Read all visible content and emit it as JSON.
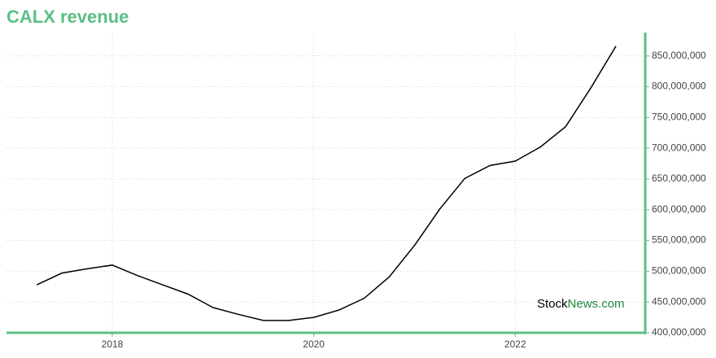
{
  "chart_data": {
    "type": "line",
    "title": "CALX revenue",
    "watermark": [
      "Stock",
      "News.com"
    ],
    "x": [
      2017.25,
      2017.5,
      2017.75,
      2018.0,
      2018.25,
      2018.5,
      2018.75,
      2019.0,
      2019.25,
      2019.5,
      2019.75,
      2020.0,
      2020.25,
      2020.5,
      2020.75,
      2021.0,
      2021.25,
      2021.5,
      2021.75,
      2022.0,
      2022.25,
      2022.5,
      2022.75,
      2023.0
    ],
    "series": [
      {
        "color": "#000000",
        "values": [
          478000000,
          497000000,
          504000000,
          510000000,
          493000000,
          478000000,
          463000000,
          441000000,
          430000000,
          420000000,
          420000000,
          425000000,
          437000000,
          456000000,
          491000000,
          542000000,
          601000000,
          651000000,
          672000000,
          679000000,
          702000000,
          735000000,
          798000000,
          866000000
        ]
      }
    ],
    "xlim": [
      2016.95,
      2023.29
    ],
    "xticks": [
      2018,
      2020,
      2022
    ],
    "ylim": [
      400000000,
      888000000
    ],
    "yticks": [
      {
        "value": 400000000,
        "label": "400,000,000"
      },
      {
        "value": 450000000,
        "label": "450,000,000"
      },
      {
        "value": 500000000,
        "label": "500,000,000"
      },
      {
        "value": 550000000,
        "label": "550,000,000"
      },
      {
        "value": 600000000,
        "label": "600,000,000"
      },
      {
        "value": 650000000,
        "label": "650,000,000"
      },
      {
        "value": 700000000,
        "label": "700,000,000"
      },
      {
        "value": 750000000,
        "label": "750,000,000"
      },
      {
        "value": 800000000,
        "label": "800,000,000"
      },
      {
        "value": 850000000,
        "label": "850,000,000"
      }
    ],
    "grid": true,
    "axis_color": "#5bbf84"
  }
}
